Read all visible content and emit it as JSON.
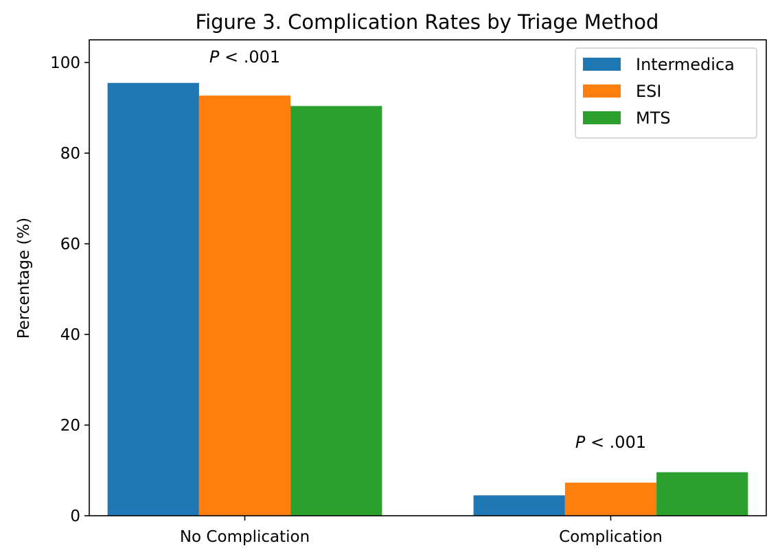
{
  "chart_data": {
    "type": "bar",
    "title": "Figure 3. Complication Rates by Triage Method",
    "xlabel": "",
    "ylabel": "Percentage (%)",
    "categories": [
      "No Complication",
      "Complication"
    ],
    "series": [
      {
        "name": "Intermedica",
        "values": [
          95.5,
          4.5
        ],
        "color": "#1f77b4"
      },
      {
        "name": "ESI",
        "values": [
          92.7,
          7.3
        ],
        "color": "#ff7f0e"
      },
      {
        "name": "MTS",
        "values": [
          90.4,
          9.6
        ],
        "color": "#2ca02c"
      }
    ],
    "ylim": [
      0,
      105
    ],
    "yticks": [
      0,
      20,
      40,
      60,
      80,
      100
    ],
    "grid": false,
    "legend_position": "top-right",
    "annotations": [
      {
        "category_index": 0,
        "value": 100,
        "italic": "P",
        "text": " < .001"
      },
      {
        "category_index": 1,
        "value": 15,
        "italic": "P",
        "text": " < .001"
      }
    ]
  }
}
